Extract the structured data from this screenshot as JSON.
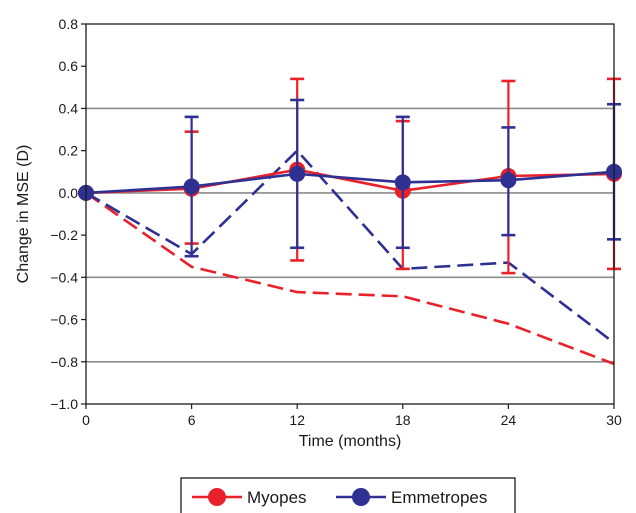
{
  "chart_data": {
    "type": "line",
    "xlabel": "Time (months)",
    "ylabel": "Change in MSE (D)",
    "xlim": [
      0,
      30
    ],
    "ylim": [
      -1.0,
      0.8
    ],
    "x_ticks": [
      0,
      6,
      12,
      18,
      24,
      30
    ],
    "x_tick_labels": [
      "0",
      "6",
      "12",
      "18",
      "24",
      "30"
    ],
    "y_ticks": [
      -1.0,
      -0.8,
      -0.6,
      -0.4,
      -0.2,
      0.0,
      0.2,
      0.4,
      0.6,
      0.8
    ],
    "y_tick_labels": [
      "−1.0",
      "−0.8",
      "−0.6",
      "−0.4",
      "−0.2",
      "0.0",
      "0.2",
      "0.4",
      "0.6",
      "0.8"
    ],
    "gridlines_y": [
      -0.8,
      -0.4,
      0.0,
      0.4
    ],
    "legend_position": "bottom-center",
    "series": [
      {
        "name": "Myopes",
        "color": "#e8212b",
        "style": "solid-markers",
        "x": [
          0,
          6,
          12,
          18,
          24,
          30
        ],
        "y": [
          0.0,
          0.02,
          0.11,
          0.01,
          0.08,
          0.09
        ],
        "error_upper": [
          0.0,
          0.29,
          0.54,
          0.34,
          0.53,
          0.54
        ],
        "error_lower": [
          0.0,
          -0.24,
          -0.32,
          -0.36,
          -0.38,
          -0.36
        ]
      },
      {
        "name": "Emmetropes",
        "color": "#2e3192",
        "style": "solid-markers",
        "x": [
          0,
          6,
          12,
          18,
          24,
          30
        ],
        "y": [
          0.0,
          0.03,
          0.09,
          0.05,
          0.06,
          0.1
        ],
        "error_upper": [
          0.0,
          0.36,
          0.44,
          0.36,
          0.31,
          0.42
        ],
        "error_lower": [
          0.0,
          -0.3,
          -0.26,
          -0.26,
          -0.2,
          -0.22
        ]
      },
      {
        "color": "#e8212b",
        "style": "dashed",
        "x": [
          0,
          6,
          12,
          18,
          24,
          30
        ],
        "y": [
          0.0,
          -0.35,
          -0.47,
          -0.49,
          -0.62,
          -0.81
        ]
      },
      {
        "color": "#2e3192",
        "style": "dashed",
        "x": [
          0,
          6,
          12,
          18,
          24,
          30
        ],
        "y": [
          0.0,
          -0.29,
          0.2,
          -0.36,
          -0.33,
          -0.71
        ]
      }
    ]
  }
}
